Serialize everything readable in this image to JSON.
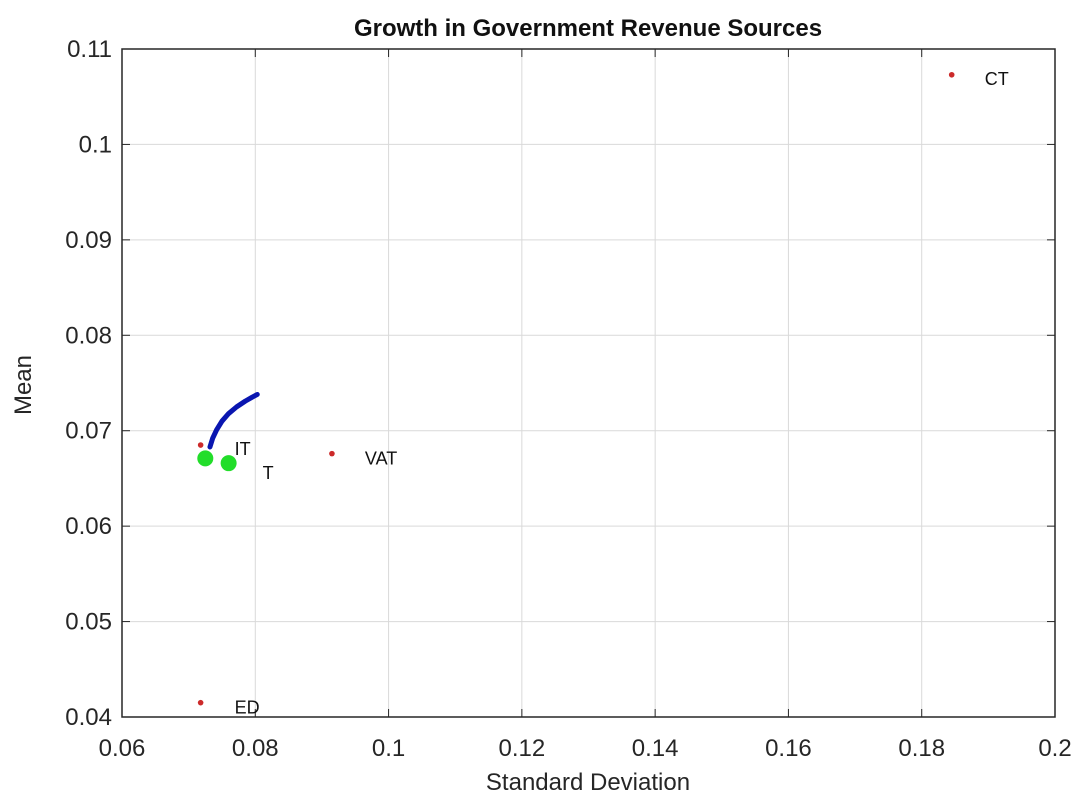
{
  "chart_data": {
    "type": "scatter",
    "title": "Growth in Government Revenue Sources",
    "xlabel": "Standard Deviation",
    "ylabel": "Mean",
    "xlim": [
      0.06,
      0.2
    ],
    "ylim": [
      0.04,
      0.11
    ],
    "grid": true,
    "x_ticks": [
      0.06,
      0.08,
      0.1,
      0.12,
      0.14,
      0.16,
      0.18,
      0.2
    ],
    "x_tick_labels": [
      "0.06",
      "0.08",
      "0.1",
      "0.12",
      "0.14",
      "0.16",
      "0.18",
      "0.2"
    ],
    "y_ticks": [
      0.04,
      0.05,
      0.06,
      0.07,
      0.08,
      0.09,
      0.1,
      0.11
    ],
    "y_tick_labels": [
      "0.04",
      "0.05",
      "0.06",
      "0.07",
      "0.08",
      "0.09",
      "0.1",
      "0.11"
    ],
    "points": [
      {
        "label": "CT",
        "x": 0.1845,
        "y": 0.1073
      },
      {
        "label": "IT",
        "x": 0.0718,
        "y": 0.0685
      },
      {
        "label": "VAT",
        "x": 0.0915,
        "y": 0.0676
      },
      {
        "label": "ED",
        "x": 0.0718,
        "y": 0.0415
      }
    ],
    "highlight_points": [
      {
        "label": "",
        "x": 0.0725,
        "y": 0.0671
      },
      {
        "label": "T",
        "x": 0.076,
        "y": 0.0666
      }
    ],
    "frontier": {
      "x": [
        0.0732,
        0.0736,
        0.0742,
        0.075,
        0.076,
        0.0772,
        0.0785,
        0.0795,
        0.0803
      ],
      "y": [
        0.0683,
        0.0692,
        0.0701,
        0.071,
        0.0718,
        0.0725,
        0.0731,
        0.0735,
        0.0738
      ]
    },
    "colors": {
      "points": "#cc2a2a",
      "highlight": "#22dd2a",
      "frontier": "#0a16b0",
      "grid": "#d9d9d9",
      "axes": "#262626"
    }
  }
}
